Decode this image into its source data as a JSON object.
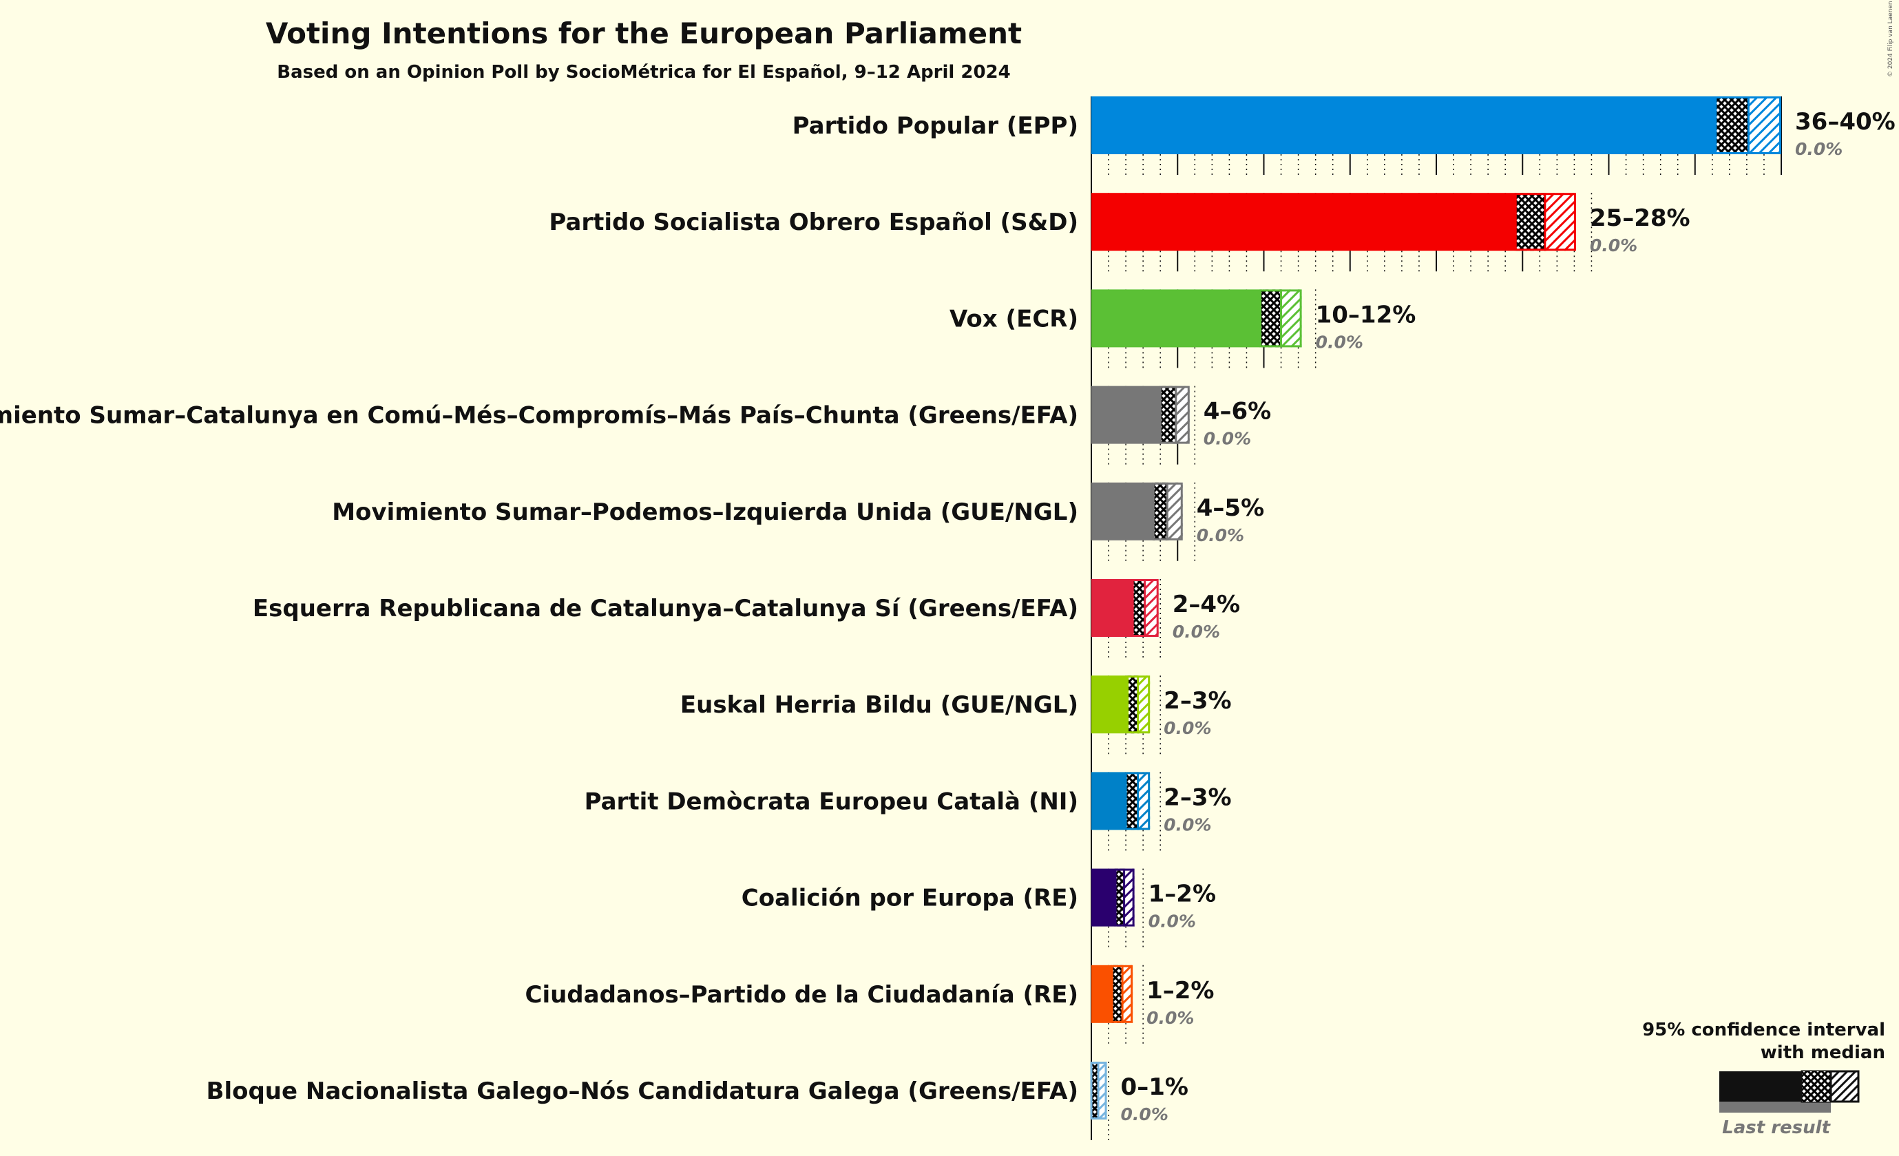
{
  "title": "Voting Intentions for the European Parliament",
  "subtitle": "Based on an Opinion Poll by SocioMétrica for El Español, 9–12 April 2024",
  "copyright": "© 2024 Filip van Laenen",
  "legend": {
    "ci_line1": "95% confidence interval",
    "ci_line2": "with median",
    "last_result": "Last result"
  },
  "chart_data": {
    "type": "bar",
    "orientation": "horizontal",
    "title": "Voting Intentions for the European Parliament",
    "subtitle": "Based on an Opinion Poll by SocioMétrica for El Español, 9–12 April 2024",
    "xlim": [
      0,
      40
    ],
    "grid": "dotted vertical lines every 1%, solid every 5%",
    "legend_position": "bottom-right",
    "categories": [
      "Partido Popular (EPP)",
      "Partido Socialista Obrero Español (S&D)",
      "Vox (ECR)",
      "Movimiento Sumar–Catalunya en Comú–Més–Compromís–Más País–Chunta (Greens/EFA)",
      "Movimiento Sumar–Podemos–Izquierda Unida (GUE/NGL)",
      "Esquerra Republicana de Catalunya–Catalunya Sí (Greens/EFA)",
      "Euskal Herria Bildu (GUE/NGL)",
      "Partit Demòcrata Europeu Català (NI)",
      "Coalición por Europa (RE)",
      "Ciudadanos–Partido de la Ciudadanía (RE)",
      "Bloque Nacionalista Galego–Nós Candidatura Galega (Greens/EFA)"
    ],
    "series": [
      {
        "name": "Partido Popular (EPP)",
        "color": "#0087DC",
        "low": 36.2,
        "median": 38.1,
        "high": 40.0,
        "range_label": "36–40%",
        "last_result": 0.0,
        "last_label": "0.0%"
      },
      {
        "name": "Partido Socialista Obrero Español (S&D)",
        "color": "#F40000",
        "low": 24.6,
        "median": 26.3,
        "high": 28.1,
        "range_label": "25–28%",
        "last_result": 0.0,
        "last_label": "0.0%"
      },
      {
        "name": "Vox (ECR)",
        "color": "#5BC035",
        "low": 9.8,
        "median": 11.0,
        "high": 12.2,
        "range_label": "10–12%",
        "last_result": 0.0,
        "last_label": "0.0%"
      },
      {
        "name": "Movimiento Sumar–Catalunya en Comú–Més–Compromís–Más País–Chunta (Greens/EFA)",
        "color": "#777777",
        "low": 4.0,
        "median": 4.9,
        "high": 5.7,
        "range_label": "4–6%",
        "last_result": 0.0,
        "last_label": "0.0%"
      },
      {
        "name": "Movimiento Sumar–Podemos–Izquierda Unida (GUE/NGL)",
        "color": "#777777",
        "low": 3.6,
        "median": 4.4,
        "high": 5.3,
        "range_label": "4–5%",
        "last_result": 0.0,
        "last_label": "0.0%"
      },
      {
        "name": "Esquerra Republicana de Catalunya–Catalunya Sí (Greens/EFA)",
        "color": "#E1233E",
        "low": 2.4,
        "median": 3.1,
        "high": 3.9,
        "range_label": "2–4%",
        "last_result": 0.0,
        "last_label": "0.0%"
      },
      {
        "name": "Euskal Herria Bildu (GUE/NGL)",
        "color": "#97D000",
        "low": 2.1,
        "median": 2.7,
        "high": 3.4,
        "range_label": "2–3%",
        "last_result": 0.0,
        "last_label": "0.0%"
      },
      {
        "name": "Partit Demòcrata Europeu Català (NI)",
        "color": "#0081C8",
        "low": 2.0,
        "median": 2.7,
        "high": 3.4,
        "range_label": "2–3%",
        "last_result": 0.0,
        "last_label": "0.0%"
      },
      {
        "name": "Coalición por Europa (RE)",
        "color": "#2A006E",
        "low": 1.4,
        "median": 1.9,
        "high": 2.5,
        "range_label": "1–2%",
        "last_result": 0.0,
        "last_label": "0.0%"
      },
      {
        "name": "Ciudadanos–Partido de la Ciudadanía (RE)",
        "color": "#FA5000",
        "low": 1.2,
        "median": 1.8,
        "high": 2.4,
        "range_label": "1–2%",
        "last_result": 0.0,
        "last_label": "0.0%"
      },
      {
        "name": "Bloque Nacionalista Galego–Nós Candidatura Galega (Greens/EFA)",
        "color": "#76B4DF",
        "low": 0.0,
        "median": 0.4,
        "high": 0.9,
        "range_label": "0–1%",
        "last_result": 0.0,
        "last_label": "0.0%"
      }
    ]
  }
}
